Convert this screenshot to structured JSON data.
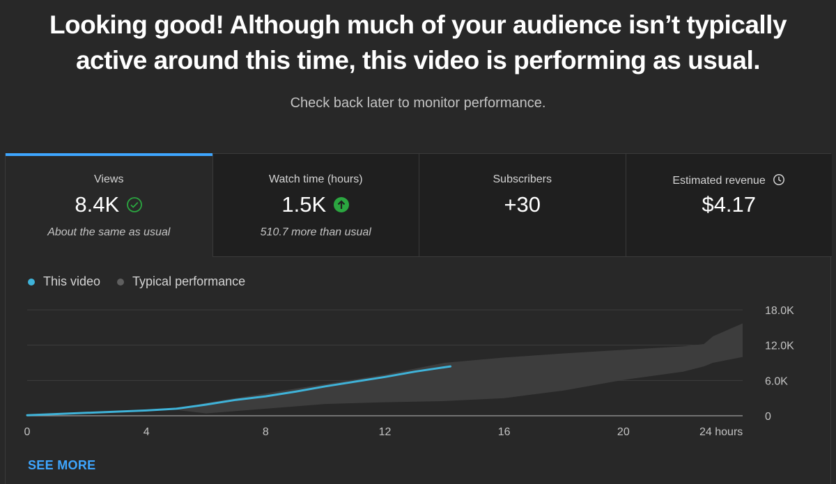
{
  "header": {
    "headline_line1": "Looking good! Although much of your audience isn’t typically",
    "headline_line2": "active around this time, this video is performing as usual.",
    "subline": "Check back later to monitor performance."
  },
  "tabs": [
    {
      "label": "Views",
      "value": "8.4K",
      "note": "About the same as usual",
      "icon": "check-circle-icon"
    },
    {
      "label": "Watch time (hours)",
      "value": "1.5K",
      "note": "510.7 more than usual",
      "icon": "arrow-up-circle-icon"
    },
    {
      "label": "Subscribers",
      "value": "+30",
      "note": ""
    },
    {
      "label": "Estimated revenue",
      "value": "$4.17",
      "note": "",
      "icon": "clock-icon"
    }
  ],
  "legend": {
    "this_video": "This video",
    "typical": "Typical performance"
  },
  "colors": {
    "accent": "#3ea6ff",
    "line": "#3fb3d9",
    "positive": "#2ba640",
    "band": "#3d3d3d",
    "typical_dot": "#5f5f5f"
  },
  "see_more": "SEE MORE",
  "chart_data": {
    "type": "line",
    "x_unit": "hours",
    "xlim": [
      0,
      24
    ],
    "ylim": [
      0,
      18000
    ],
    "x_ticks": [
      0,
      4,
      8,
      12,
      16,
      20,
      24
    ],
    "x_tick_labels": [
      "0",
      "4",
      "8",
      "12",
      "16",
      "20",
      "24 hours"
    ],
    "y_ticks": [
      0,
      6000,
      12000,
      18000
    ],
    "y_tick_labels": [
      "0",
      "6.0K",
      "12.0K",
      "18.0K"
    ],
    "series": [
      {
        "name": "This video",
        "x": [
          0,
          1,
          2,
          3,
          4,
          5,
          6,
          7,
          8,
          9,
          10,
          11,
          12,
          13,
          14.2
        ],
        "y": [
          100,
          300,
          500,
          700,
          900,
          1200,
          1900,
          2700,
          3300,
          4100,
          5000,
          5800,
          6600,
          7500,
          8400
        ]
      },
      {
        "name": "Typical performance",
        "x": [
          5,
          6,
          8,
          10,
          12,
          14,
          16,
          18,
          20,
          22,
          22.7,
          23,
          24
        ],
        "upper": [
          1000,
          2200,
          3800,
          5400,
          7000,
          9000,
          9900,
          10600,
          11200,
          11800,
          12200,
          13500,
          15700
        ],
        "lower": [
          1000,
          400,
          1200,
          2000,
          2300,
          2500,
          3000,
          4300,
          6100,
          7500,
          8400,
          9000,
          10000
        ]
      }
    ]
  }
}
